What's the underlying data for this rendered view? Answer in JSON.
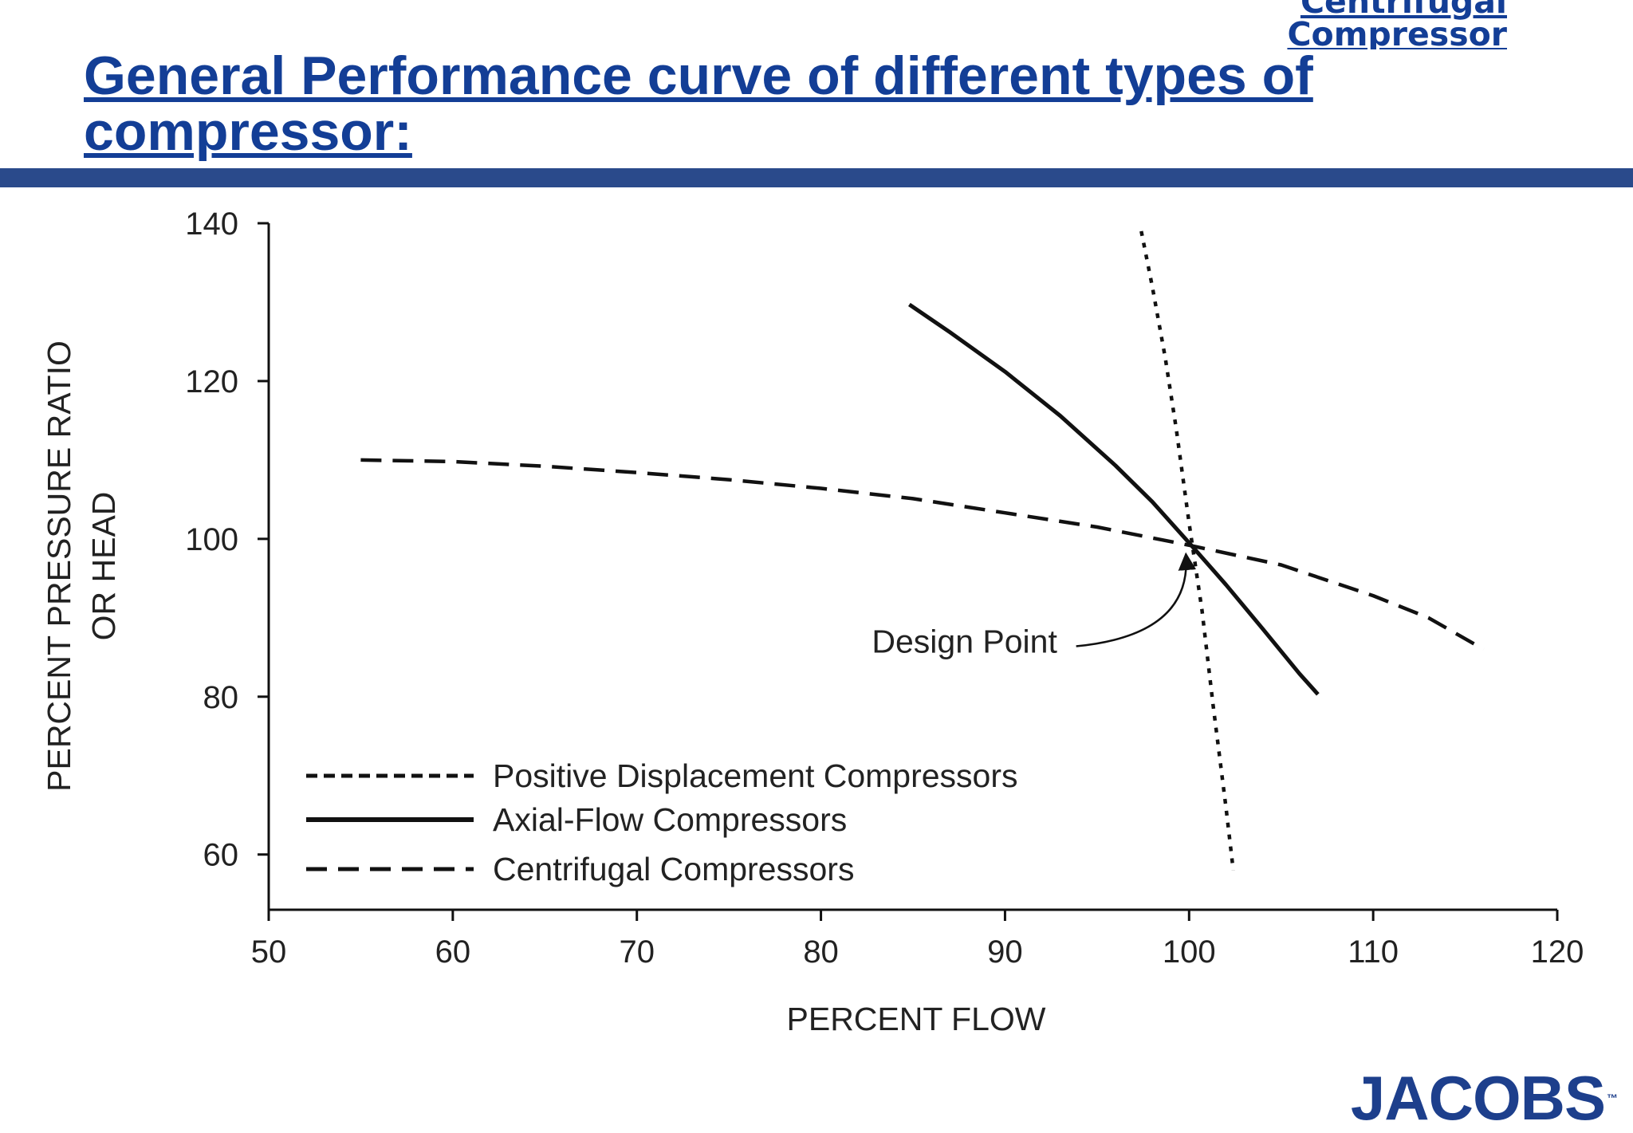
{
  "header": {
    "corner_link_line1": "Centrifugal",
    "corner_link_line2": "Compressor",
    "title": "General Performance curve of different types of compressor:"
  },
  "colors": {
    "title": "#133e96",
    "rule": "#2a4a8b",
    "brand": "#1d3f8c",
    "ink": "#111111"
  },
  "chart_data": {
    "type": "line",
    "xlabel": "PERCENT FLOW",
    "ylabel": "PERCENT PRESSURE RATIO OR HEAD",
    "ylabel_lines": [
      "PERCENT PRESSURE RATIO",
      "OR HEAD"
    ],
    "xlim": [
      50,
      120
    ],
    "ylim": [
      53,
      140
    ],
    "xticks": [
      50,
      60,
      70,
      80,
      90,
      100,
      110,
      120
    ],
    "yticks": [
      60,
      80,
      100,
      120,
      140
    ],
    "grid": false,
    "legend_position": "bottom-left",
    "series": [
      {
        "name": "Positive Displacement Compressors",
        "style": "dotted",
        "x": [
          97.4,
          98.0,
          98.7,
          99.3,
          100.0,
          100.7,
          101.3,
          102.0,
          102.4
        ],
        "y": [
          139,
          132,
          123,
          114,
          102,
          91,
          79,
          66,
          58
        ]
      },
      {
        "name": "Axial-Flow Compressors",
        "style": "solid",
        "x": [
          84.8,
          87,
          90,
          93,
          96,
          98,
          100,
          102,
          104,
          106,
          107
        ],
        "y": [
          129.7,
          126.2,
          121.2,
          115.6,
          109.3,
          104.7,
          99.5,
          94.2,
          88.6,
          82.9,
          80.3
        ]
      },
      {
        "name": "Centrifugal Compressors",
        "style": "dashed",
        "x": [
          55,
          60,
          65,
          70,
          75,
          80,
          85,
          90,
          95,
          100,
          105,
          110,
          113,
          116
        ],
        "y": [
          110,
          109.8,
          109.2,
          108.4,
          107.5,
          106.4,
          105.1,
          103.3,
          101.5,
          99.2,
          96.7,
          92.8,
          90.0,
          86
        ]
      }
    ],
    "annotations": [
      {
        "text": "Design Point",
        "label_x": 87.8,
        "label_y": 87,
        "target_x": 100,
        "target_y": 99.5
      }
    ]
  },
  "footer": {
    "brand": "JACOBS",
    "trademark": "™"
  }
}
